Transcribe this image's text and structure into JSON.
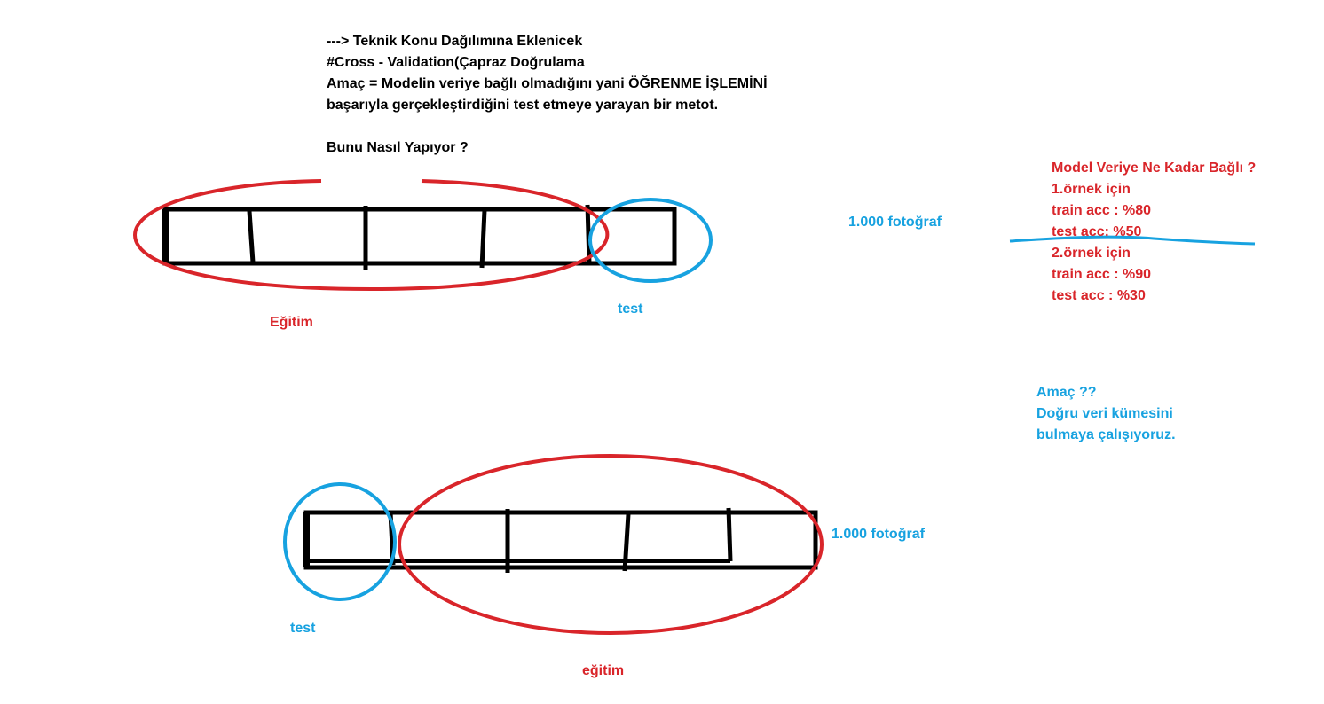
{
  "header": {
    "lines": [
      "---> Teknik Konu Dağılımına Eklenicek",
      "#Cross - Validation(Çapraz Doğrulama",
      "Amaç = Modelin veriye bağlı olmadığını yani ÖĞRENME İŞLEMİNİ",
      "başarıyla gerçekleştirdiğini test etmeye yarayan bir metot."
    ],
    "question": "Bunu Nasıl Yapıyor ?"
  },
  "diagram_top": {
    "train_label": "Eğitim",
    "test_label": "test",
    "count_label": "1.000 fotoğraf"
  },
  "diagram_bottom": {
    "train_label": "eğitim",
    "test_label": "test",
    "count_label": "1.000 fotoğraf"
  },
  "notes_red": {
    "title": "Model Veriye Ne Kadar Bağlı ?",
    "lines": [
      "1.örnek için",
      "train acc : %80",
      "test acc: %50",
      "2.örnek için",
      "train acc : %90",
      "test acc : %30"
    ]
  },
  "notes_blue": {
    "lines": [
      "Amaç ??",
      "Doğru veri kümesini",
      "bulmaya çalışıyoruz."
    ]
  },
  "colors": {
    "red": "#d9252a",
    "blue": "#17a2e0",
    "black": "#000000"
  }
}
